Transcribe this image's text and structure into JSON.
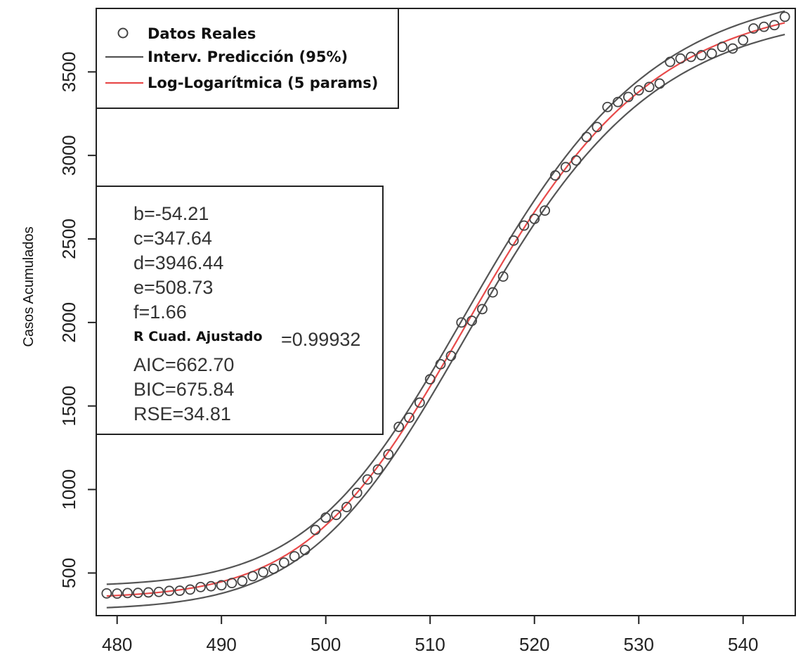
{
  "chart_data": {
    "type": "scatter",
    "xlabel": "",
    "ylabel": "Casos Acumulados",
    "xlim": [
      478,
      545
    ],
    "ylim": [
      245,
      3880
    ],
    "x_ticks": [
      480,
      490,
      500,
      510,
      520,
      530,
      540
    ],
    "y_ticks": [
      500,
      1000,
      1500,
      2000,
      2500,
      3000,
      3500
    ],
    "grid": false,
    "legend_position": "top-left",
    "legend": [
      {
        "label": "Datos Reales",
        "symbol": "circle",
        "color": "#444444"
      },
      {
        "label": "Interv. Predicción (95%)",
        "symbol": "line",
        "color": "#555555"
      },
      {
        "label": "Log-Logarítmica (5 params)",
        "symbol": "line",
        "color": "#e84a4a"
      }
    ],
    "model": {
      "name": "Log-Logarítmica (5 params)",
      "params": {
        "b": -54.21,
        "c": 347.64,
        "d": 3946.44,
        "e": 508.73,
        "f": 1.66
      },
      "stats": [
        {
          "label": "b=-54.21"
        },
        {
          "label": "c=347.64"
        },
        {
          "label": "d=3946.44"
        },
        {
          "label": "e=508.73"
        },
        {
          "label": "f=1.66"
        },
        {
          "label": "R Cuad. Ajustado",
          "value": "=0.99932"
        },
        {
          "label": "AIC=662.70"
        },
        {
          "label": "BIC=675.84"
        },
        {
          "label": "RSE=34.81"
        }
      ],
      "color": "#e84a4a"
    },
    "prediction_interval": {
      "label": "Interv. Predicción (95%)",
      "level": 0.95,
      "color": "#555555"
    },
    "series": [
      {
        "name": "Datos Reales",
        "type": "scatter",
        "x": [
          479,
          480,
          481,
          482,
          483,
          484,
          485,
          486,
          487,
          488,
          489,
          490,
          491,
          492,
          493,
          494,
          495,
          496,
          497,
          498,
          499,
          500,
          501,
          502,
          503,
          504,
          505,
          506,
          507,
          508,
          509,
          510,
          511,
          512,
          513,
          514,
          515,
          516,
          517,
          518,
          519,
          520,
          521,
          522,
          523,
          524,
          525,
          526,
          527,
          528,
          529,
          530,
          531,
          532,
          533,
          534,
          535,
          536,
          537,
          538,
          539,
          540,
          541,
          542,
          543,
          544
        ],
        "y": [
          378,
          377,
          380,
          381,
          384,
          387,
          393,
          394,
          401,
          416,
          421,
          427,
          440,
          452,
          481,
          505,
          525,
          562,
          600,
          638,
          758,
          832,
          848,
          895,
          980,
          1060,
          1120,
          1210,
          1375,
          1430,
          1520,
          1660,
          1750,
          1800,
          2000,
          2010,
          2080,
          2180,
          2275,
          2490,
          2580,
          2620,
          2670,
          2880,
          2930,
          2970,
          3110,
          3170,
          3290,
          3320,
          3350,
          3390,
          3410,
          3430,
          3560,
          3580,
          3590,
          3600,
          3610,
          3650,
          3640,
          3690,
          3760,
          3770,
          3780,
          3830
        ]
      }
    ]
  }
}
